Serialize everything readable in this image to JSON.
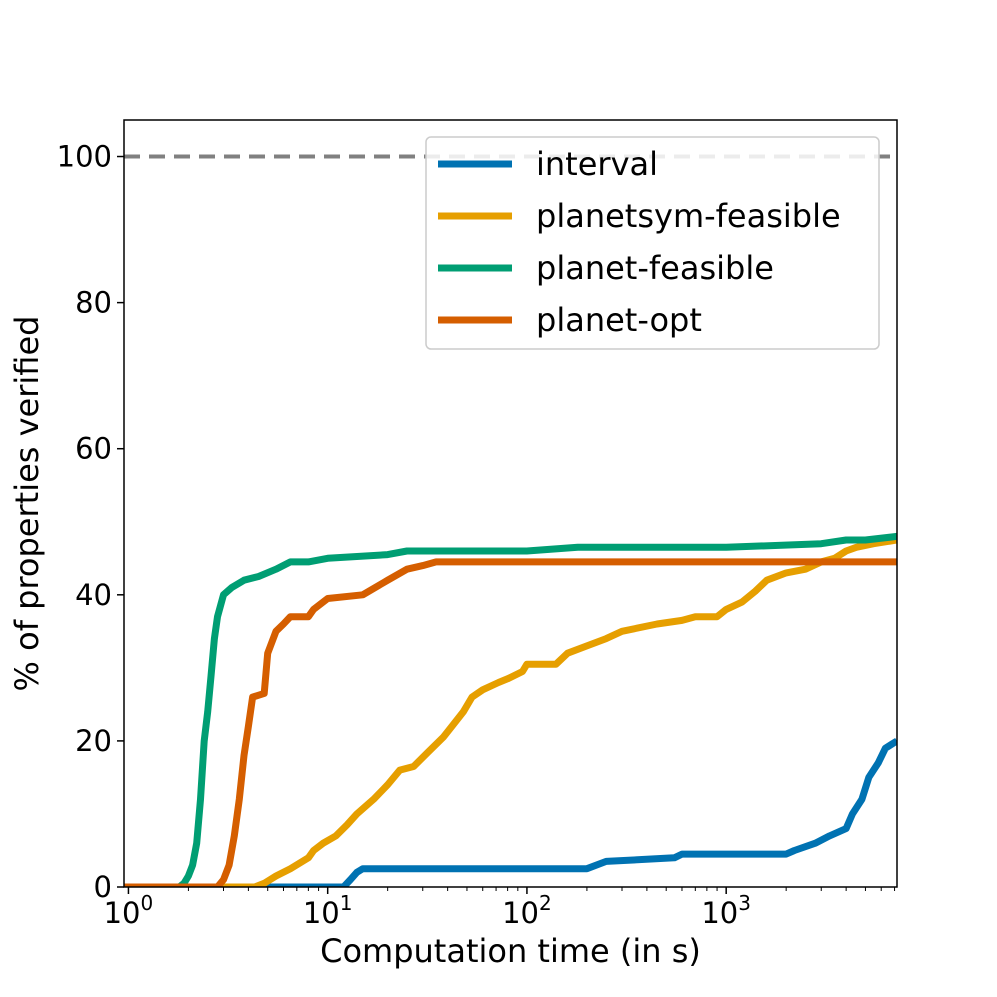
{
  "chart_data": {
    "type": "line",
    "xscale": "log",
    "xlabel": "Computation time (in s)",
    "ylabel": "% of properties verified",
    "xlim": [
      0.95,
      7200
    ],
    "ylim": [
      0,
      105
    ],
    "xticks": [
      {
        "value": 1,
        "base": "10",
        "exp": "0"
      },
      {
        "value": 10,
        "base": "10",
        "exp": "1"
      },
      {
        "value": 100,
        "base": "10",
        "exp": "2"
      },
      {
        "value": 1000,
        "base": "10",
        "exp": "3"
      }
    ],
    "yticks": [
      {
        "value": 0,
        "label": "0"
      },
      {
        "value": 20,
        "label": "20"
      },
      {
        "value": 40,
        "label": "40"
      },
      {
        "value": 60,
        "label": "60"
      },
      {
        "value": 80,
        "label": "80"
      },
      {
        "value": 100,
        "label": "100"
      }
    ],
    "reference_line": {
      "y": 100,
      "color": "#808080",
      "style": "dashed"
    },
    "legend": {
      "placement": "top-right"
    },
    "series": [
      {
        "name": "interval",
        "color": "#0072B2",
        "points": [
          [
            0.95,
            0
          ],
          [
            12,
            0
          ],
          [
            13,
            1
          ],
          [
            14,
            2
          ],
          [
            15,
            2.5
          ],
          [
            50,
            2.5
          ],
          [
            200,
            2.5
          ],
          [
            250,
            3.5
          ],
          [
            550,
            4
          ],
          [
            600,
            4.5
          ],
          [
            1000,
            4.5
          ],
          [
            2000,
            4.5
          ],
          [
            2200,
            5
          ],
          [
            2800,
            6
          ],
          [
            3300,
            7
          ],
          [
            4000,
            8
          ],
          [
            4300,
            10
          ],
          [
            4800,
            12
          ],
          [
            5200,
            15
          ],
          [
            5800,
            17
          ],
          [
            6300,
            19
          ],
          [
            7200,
            20
          ]
        ]
      },
      {
        "name": "planetsym-feasible",
        "color": "#E69F00",
        "points": [
          [
            0.95,
            0
          ],
          [
            4.3,
            0
          ],
          [
            4.8,
            0.5
          ],
          [
            5.5,
            1.5
          ],
          [
            6.5,
            2.5
          ],
          [
            8,
            4
          ],
          [
            8.5,
            5
          ],
          [
            9.5,
            6
          ],
          [
            11,
            7
          ],
          [
            12.5,
            8.5
          ],
          [
            14,
            10
          ],
          [
            17,
            12
          ],
          [
            20,
            14
          ],
          [
            23,
            16
          ],
          [
            27,
            16.5
          ],
          [
            32,
            18.5
          ],
          [
            38,
            20.5
          ],
          [
            42,
            22
          ],
          [
            48,
            24
          ],
          [
            53,
            26
          ],
          [
            60,
            27
          ],
          [
            72,
            28
          ],
          [
            80,
            28.5
          ],
          [
            95,
            29.5
          ],
          [
            100,
            30.5
          ],
          [
            140,
            30.5
          ],
          [
            160,
            32
          ],
          [
            200,
            33
          ],
          [
            250,
            34
          ],
          [
            300,
            35
          ],
          [
            450,
            36
          ],
          [
            600,
            36.5
          ],
          [
            700,
            37
          ],
          [
            900,
            37
          ],
          [
            1000,
            38
          ],
          [
            1200,
            39
          ],
          [
            1400,
            40.5
          ],
          [
            1600,
            42
          ],
          [
            2000,
            43
          ],
          [
            2500,
            43.5
          ],
          [
            3000,
            44.5
          ],
          [
            3500,
            45
          ],
          [
            4000,
            46
          ],
          [
            4500,
            46.5
          ],
          [
            5500,
            47
          ],
          [
            7200,
            47.5
          ]
        ]
      },
      {
        "name": "planet-feasible",
        "color": "#009E73",
        "points": [
          [
            0.95,
            0
          ],
          [
            1.8,
            0
          ],
          [
            1.9,
            0.5
          ],
          [
            2,
            1.5
          ],
          [
            2.1,
            3
          ],
          [
            2.2,
            6
          ],
          [
            2.3,
            12
          ],
          [
            2.4,
            20
          ],
          [
            2.5,
            24
          ],
          [
            2.6,
            29
          ],
          [
            2.7,
            34
          ],
          [
            2.8,
            37
          ],
          [
            3,
            40
          ],
          [
            3.3,
            41
          ],
          [
            3.8,
            42
          ],
          [
            4.5,
            42.5
          ],
          [
            5.5,
            43.5
          ],
          [
            6.5,
            44.5
          ],
          [
            8,
            44.5
          ],
          [
            10,
            45
          ],
          [
            20,
            45.5
          ],
          [
            25,
            46
          ],
          [
            100,
            46
          ],
          [
            180,
            46.5
          ],
          [
            500,
            46.5
          ],
          [
            1000,
            46.5
          ],
          [
            3000,
            47
          ],
          [
            4000,
            47.5
          ],
          [
            5000,
            47.5
          ],
          [
            7200,
            48
          ]
        ]
      },
      {
        "name": "planet-opt",
        "color": "#D55E00",
        "points": [
          [
            0.95,
            0
          ],
          [
            2.8,
            0
          ],
          [
            3,
            1
          ],
          [
            3.2,
            3
          ],
          [
            3.4,
            7
          ],
          [
            3.6,
            12
          ],
          [
            3.8,
            18
          ],
          [
            4,
            22
          ],
          [
            4.2,
            26
          ],
          [
            4.8,
            26.5
          ],
          [
            5,
            32
          ],
          [
            5.5,
            35
          ],
          [
            6,
            36
          ],
          [
            6.5,
            37
          ],
          [
            8,
            37
          ],
          [
            8.5,
            38
          ],
          [
            10,
            39.5
          ],
          [
            15,
            40
          ],
          [
            20,
            42
          ],
          [
            25,
            43.5
          ],
          [
            30,
            44
          ],
          [
            35,
            44.5
          ],
          [
            1000,
            44.5
          ],
          [
            7200,
            44.5
          ]
        ]
      }
    ]
  }
}
